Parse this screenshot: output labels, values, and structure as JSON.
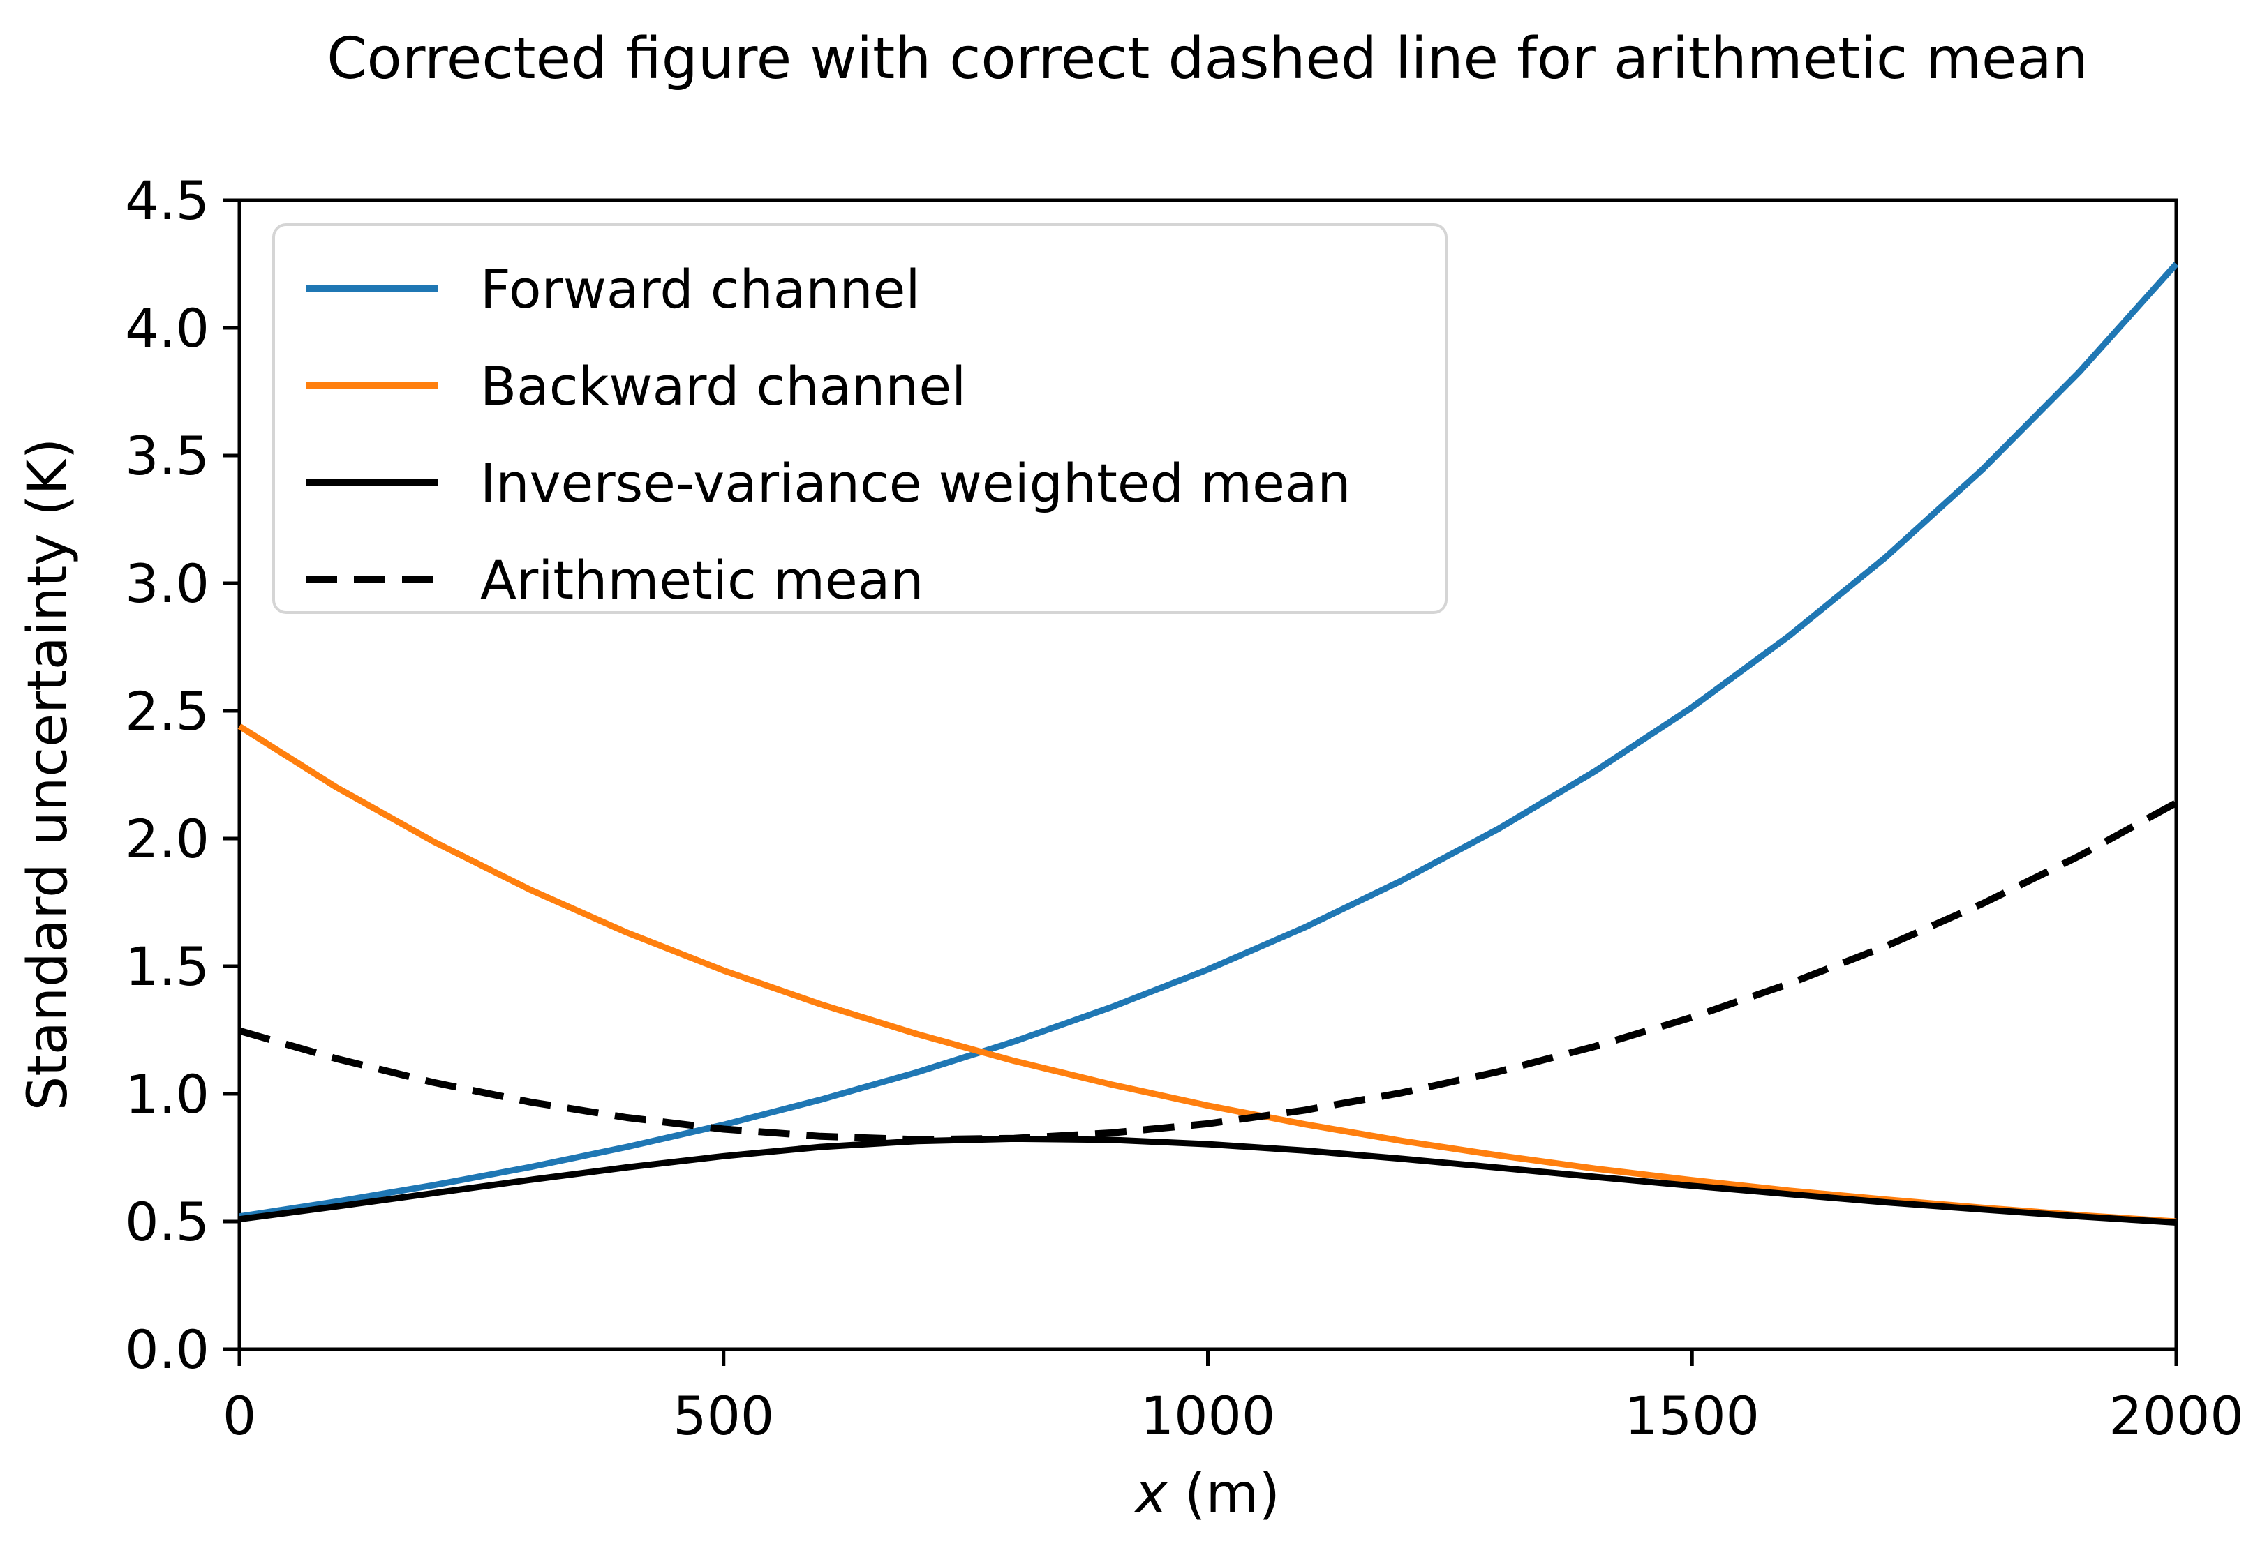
{
  "chart_data": {
    "type": "line",
    "title": "Corrected figure with correct dashed line for arithmetic mean",
    "xlabel": "x (m)",
    "xlabel_var": "x",
    "xlabel_unit": " (m)",
    "ylabel": "Standard uncertainty (K)",
    "xlim": [
      0,
      2000
    ],
    "ylim": [
      0,
      4.5
    ],
    "xticks": [
      0,
      500,
      1000,
      1500,
      2000
    ],
    "yticks": [
      0.0,
      0.5,
      1.0,
      1.5,
      2.0,
      2.5,
      3.0,
      3.5,
      4.0,
      4.5
    ],
    "grid": false,
    "legend_position": "upper left",
    "x": [
      0,
      100,
      200,
      300,
      400,
      500,
      600,
      700,
      800,
      900,
      1000,
      1100,
      1200,
      1300,
      1400,
      1500,
      1600,
      1700,
      1800,
      1900,
      2000
    ],
    "series": [
      {
        "name": "Forward channel",
        "color": "#1f77b4",
        "style": "solid",
        "values": [
          0.52,
          0.578,
          0.642,
          0.713,
          0.792,
          0.879,
          0.977,
          1.085,
          1.205,
          1.339,
          1.487,
          1.652,
          1.835,
          2.038,
          2.264,
          2.514,
          2.793,
          3.102,
          3.446,
          3.828,
          4.25
        ]
      },
      {
        "name": "Backward channel",
        "color": "#ff7f0e",
        "style": "solid",
        "values": [
          2.44,
          2.201,
          1.989,
          1.8,
          1.632,
          1.483,
          1.351,
          1.234,
          1.129,
          1.037,
          0.954,
          0.881,
          0.816,
          0.759,
          0.707,
          0.662,
          0.621,
          0.586,
          0.554,
          0.525,
          0.5
        ]
      },
      {
        "name": "Inverse-variance weighted mean",
        "color": "#000000",
        "style": "solid",
        "values": [
          0.509,
          0.559,
          0.611,
          0.663,
          0.712,
          0.756,
          0.792,
          0.815,
          0.824,
          0.82,
          0.803,
          0.778,
          0.746,
          0.711,
          0.675,
          0.64,
          0.607,
          0.575,
          0.547,
          0.52,
          0.496
        ]
      },
      {
        "name": "Arithmetic mean",
        "color": "#000000",
        "style": "dashed",
        "values": [
          1.247,
          1.138,
          1.045,
          0.968,
          0.907,
          0.862,
          0.834,
          0.821,
          0.826,
          0.847,
          0.883,
          0.936,
          1.004,
          1.087,
          1.186,
          1.3,
          1.431,
          1.578,
          1.745,
          1.932,
          2.14
        ]
      }
    ],
    "colors": {
      "forward": "#1f77b4",
      "backward": "#ff7f0e",
      "mean_lines": "#000000",
      "legend_border": "#d5d5d5",
      "background": "#ffffff"
    }
  }
}
